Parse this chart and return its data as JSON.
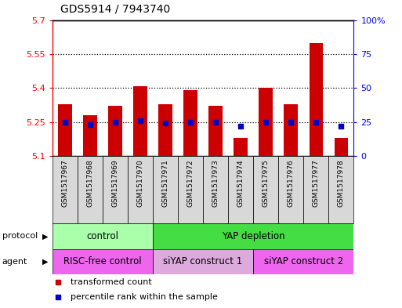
{
  "title": "GDS5914 / 7943740",
  "samples": [
    "GSM1517967",
    "GSM1517968",
    "GSM1517969",
    "GSM1517970",
    "GSM1517971",
    "GSM1517972",
    "GSM1517973",
    "GSM1517974",
    "GSM1517975",
    "GSM1517976",
    "GSM1517977",
    "GSM1517978"
  ],
  "bar_values": [
    5.33,
    5.28,
    5.32,
    5.41,
    5.33,
    5.39,
    5.32,
    5.18,
    5.4,
    5.33,
    5.6,
    5.18
  ],
  "bar_bottom": 5.1,
  "percentile_values": [
    25,
    23,
    25,
    26,
    24,
    25,
    25,
    22,
    25,
    25,
    25,
    22
  ],
  "ylim": [
    5.1,
    5.7
  ],
  "y2lim": [
    0,
    100
  ],
  "yticks": [
    5.1,
    5.25,
    5.4,
    5.55,
    5.7
  ],
  "ytick_labels": [
    "5.1",
    "5.25",
    "5.4",
    "5.55",
    "5.7"
  ],
  "y2ticks": [
    0,
    25,
    50,
    75,
    100
  ],
  "y2tick_labels": [
    "0",
    "25",
    "50",
    "75",
    "100%"
  ],
  "hlines": [
    5.25,
    5.4,
    5.55
  ],
  "bar_color": "#cc0000",
  "percentile_color": "#0000cc",
  "protocol_groups": [
    {
      "label": "control",
      "start": 0,
      "end": 3,
      "color": "#aaffaa"
    },
    {
      "label": "YAP depletion",
      "start": 4,
      "end": 11,
      "color": "#44dd44"
    }
  ],
  "agent_groups": [
    {
      "label": "RISC-free control",
      "start": 0,
      "end": 3,
      "color": "#ee66ee"
    },
    {
      "label": "siYAP construct 1",
      "start": 4,
      "end": 7,
      "color": "#ddaadd"
    },
    {
      "label": "siYAP construct 2",
      "start": 8,
      "end": 11,
      "color": "#ee66ee"
    }
  ],
  "protocol_label": "protocol",
  "agent_label": "agent",
  "legend_bar_label": "transformed count",
  "legend_pct_label": "percentile rank within the sample",
  "bar_legend_color": "#cc0000",
  "pct_legend_color": "#0000cc",
  "bg_color": "#d8d8d8",
  "plot_bg": "#ffffff",
  "sample_box_color": "#d8d8d8"
}
